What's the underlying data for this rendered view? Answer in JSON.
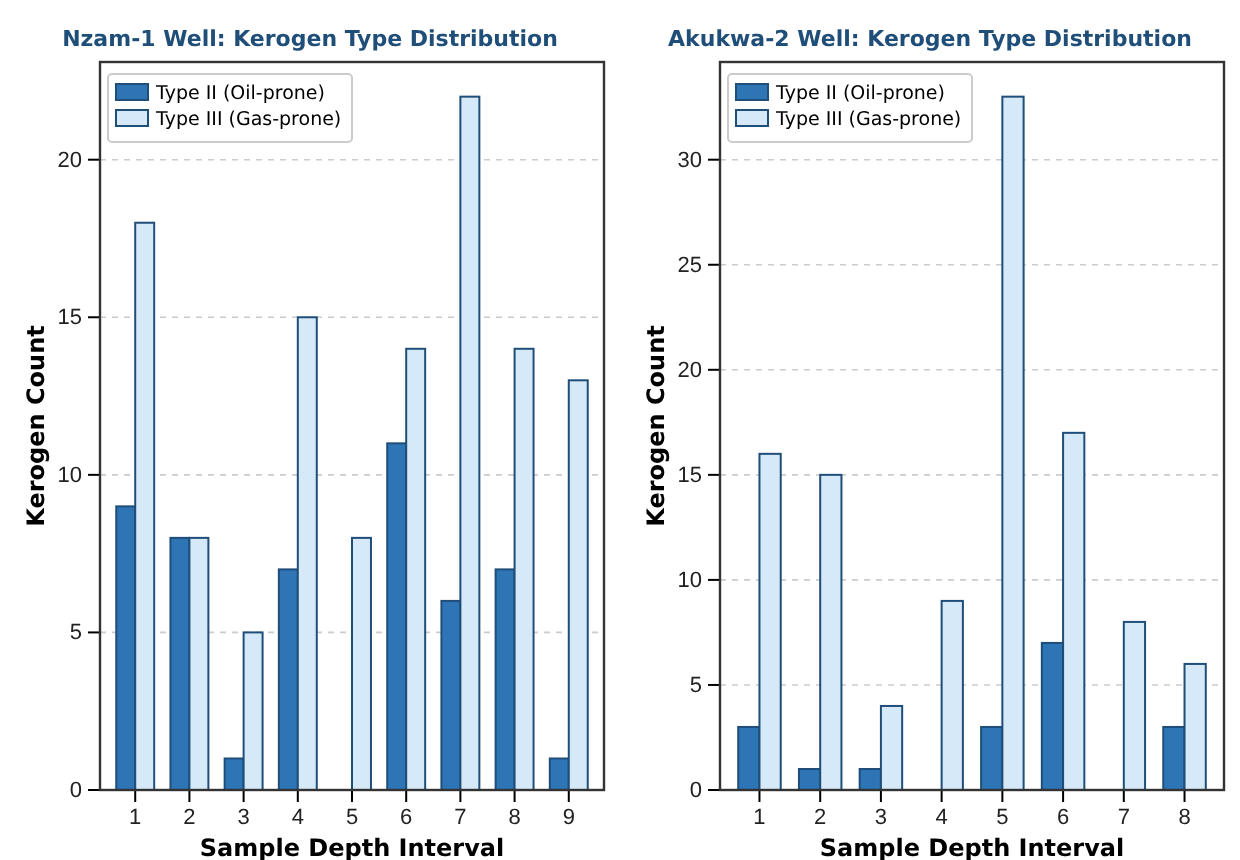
{
  "chart_data": [
    {
      "type": "bar",
      "title": "Nzam-1 Well: Kerogen Type Distribution",
      "xlabel": "Sample Depth Interval",
      "ylabel": "Kerogen Count",
      "categories": [
        "1",
        "2",
        "3",
        "4",
        "5",
        "6",
        "7",
        "8",
        "9"
      ],
      "series": [
        {
          "name": "Type II (Oil-prone)",
          "color": "#2e75b6",
          "values": [
            9,
            8,
            1,
            7,
            0,
            11,
            6,
            7,
            1
          ]
        },
        {
          "name": "Type III (Gas-prone)",
          "color": "#d6e9f8",
          "values": [
            18,
            8,
            5,
            15,
            8,
            14,
            22,
            14,
            13
          ]
        }
      ],
      "ylim": [
        0,
        23.1
      ],
      "yticks": [
        0,
        5,
        10,
        15,
        20
      ],
      "grid": "y",
      "legend": "top left"
    },
    {
      "type": "bar",
      "title": "Akukwa-2 Well: Kerogen Type Distribution",
      "xlabel": "Sample Depth Interval",
      "ylabel": "Kerogen Count",
      "categories": [
        "1",
        "2",
        "3",
        "4",
        "5",
        "6",
        "7",
        "8"
      ],
      "series": [
        {
          "name": "Type II (Oil-prone)",
          "color": "#2e75b6",
          "values": [
            3,
            1,
            1,
            0,
            3,
            7,
            0,
            3
          ]
        },
        {
          "name": "Type III (Gas-prone)",
          "color": "#d6e9f8",
          "values": [
            16,
            15,
            4,
            9,
            33,
            17,
            8,
            6
          ]
        }
      ],
      "ylim": [
        0,
        34.65
      ],
      "yticks": [
        0,
        5,
        10,
        15,
        20,
        25,
        30
      ],
      "grid": "y",
      "legend": "top left"
    }
  ]
}
